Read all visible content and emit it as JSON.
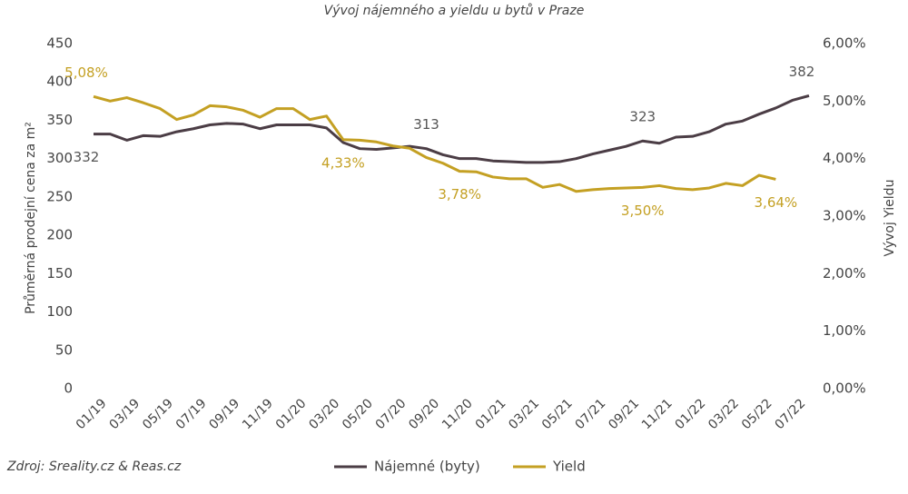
{
  "chart_data": {
    "type": "line",
    "title": "Vývoj nájemného a yieldu u bytů v Praze",
    "y_label": "Průměrná prodejní cena za m²",
    "y2_label": "Vývoj Yieldu",
    "source": "Zdroj: Sreality.cz & Reas.cz",
    "categories": [
      "01/19",
      null,
      "03/19",
      null,
      "05/19",
      null,
      "07/19",
      null,
      "09/19",
      null,
      "11/19",
      null,
      "01/20",
      null,
      "03/20",
      null,
      "05/20",
      null,
      "07/20",
      null,
      "09/20",
      null,
      "11/20",
      null,
      "01/21",
      null,
      "03/21",
      null,
      "05/21",
      null,
      "07/21",
      null,
      "09/21",
      null,
      "11/21",
      null,
      "01/22",
      null,
      "03/22",
      null,
      "05/22",
      null,
      "07/22",
      null
    ],
    "ylim": [
      0,
      450
    ],
    "yticks": [
      0,
      50,
      100,
      150,
      200,
      250,
      300,
      350,
      400,
      450
    ],
    "y2lim": [
      0,
      6
    ],
    "y2ticks": [
      {
        "value": 0,
        "label": "0,00%"
      },
      {
        "value": 1,
        "label": "1,00%"
      },
      {
        "value": 2,
        "label": "2,00%"
      },
      {
        "value": 3,
        "label": "3,00%"
      },
      {
        "value": 4,
        "label": "4,00%"
      },
      {
        "value": 5,
        "label": "5,00%"
      },
      {
        "value": 6,
        "label": "6,00%"
      }
    ],
    "legend": "bottom",
    "series": [
      {
        "name": "Nájemné (byty)",
        "color": "#4b3d45",
        "values": [
          332,
          332,
          324,
          330,
          329,
          335,
          339,
          344,
          346,
          345,
          339,
          344,
          344,
          344,
          340,
          321,
          313,
          312,
          314,
          316,
          313,
          305,
          300,
          300,
          297,
          296,
          295,
          295,
          296,
          300,
          306,
          311,
          316,
          323,
          320,
          328,
          329,
          335,
          345,
          349,
          358,
          366,
          376,
          382
        ],
        "value_labels": [
          "332",
          null,
          null,
          null,
          null,
          null,
          null,
          null,
          null,
          null,
          null,
          null,
          null,
          null,
          null,
          null,
          null,
          null,
          null,
          null,
          "313",
          null,
          null,
          null,
          null,
          null,
          null,
          null,
          null,
          null,
          null,
          null,
          null,
          "323",
          null,
          null,
          null,
          null,
          null,
          null,
          null,
          null,
          null,
          "382"
        ]
      },
      {
        "name": "Yield",
        "color": "#c4a023",
        "axis": "y2",
        "values": [
          5.08,
          5.0,
          5.06,
          4.97,
          4.87,
          4.68,
          4.76,
          4.92,
          4.9,
          4.84,
          4.72,
          4.87,
          4.87,
          4.68,
          4.74,
          4.33,
          4.32,
          4.29,
          4.22,
          4.18,
          4.02,
          3.92,
          3.78,
          3.77,
          3.68,
          3.65,
          3.65,
          3.5,
          3.55,
          3.43,
          3.46,
          3.48,
          3.49,
          3.5,
          3.53,
          3.48,
          3.46,
          3.49,
          3.57,
          3.53,
          3.71,
          3.64,
          null,
          null
        ],
        "value_labels": [
          "5,08%",
          null,
          null,
          null,
          null,
          null,
          null,
          null,
          null,
          null,
          null,
          null,
          null,
          null,
          null,
          "4,33%",
          null,
          null,
          null,
          null,
          null,
          null,
          "3,78%",
          null,
          null,
          null,
          null,
          null,
          null,
          null,
          null,
          null,
          null,
          "3,50%",
          null,
          null,
          null,
          null,
          null,
          null,
          null,
          "3,64%",
          null,
          null
        ]
      }
    ]
  }
}
